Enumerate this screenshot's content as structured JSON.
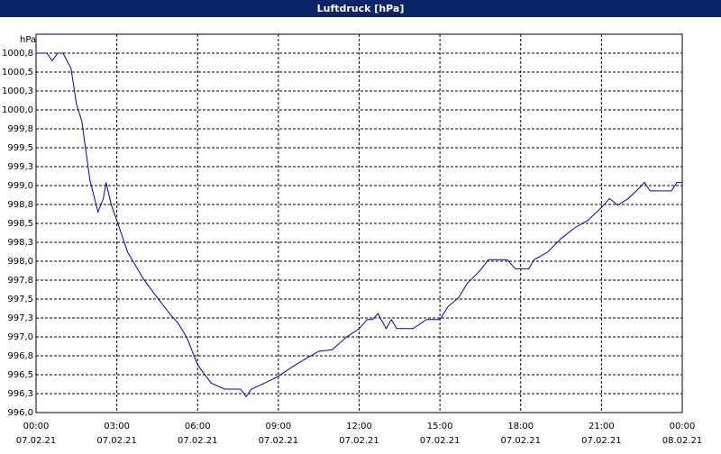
{
  "chart_data": {
    "type": "line",
    "title": "Luftdruck [hPa]",
    "y_label": "hPa",
    "xlim": [
      0,
      24
    ],
    "xticks": [
      {
        "value": 0,
        "label": "00:00"
      },
      {
        "value": 3,
        "label": "03:00"
      },
      {
        "value": 6,
        "label": "06:00"
      },
      {
        "value": 9,
        "label": "09:00"
      },
      {
        "value": 12,
        "label": "12:00"
      },
      {
        "value": 15,
        "label": "15:00"
      },
      {
        "value": 18,
        "label": "18:00"
      },
      {
        "value": 21,
        "label": "21:00"
      },
      {
        "value": 24,
        "label": "00:00"
      }
    ],
    "xtick_dates": [
      "07.02.21",
      "07.02.21",
      "07.02.21",
      "07.02.21",
      "07.02.21",
      "07.02.21",
      "07.02.21",
      "07.02.21",
      "08.02.21"
    ],
    "ylim": [
      996,
      1001
    ],
    "yticks": [
      {
        "value": 996,
        "label": "996,0"
      },
      {
        "value": 996.25,
        "label": "996,3"
      },
      {
        "value": 996.5,
        "label": "996,5"
      },
      {
        "value": 996.75,
        "label": "996,8"
      },
      {
        "value": 997,
        "label": "997,0"
      },
      {
        "value": 997.25,
        "label": "997,3"
      },
      {
        "value": 997.5,
        "label": "997,5"
      },
      {
        "value": 997.75,
        "label": "997,8"
      },
      {
        "value": 998,
        "label": "998,0"
      },
      {
        "value": 998.25,
        "label": "998,3"
      },
      {
        "value": 998.5,
        "label": "998,5"
      },
      {
        "value": 998.75,
        "label": "998,8"
      },
      {
        "value": 999,
        "label": "999,0"
      },
      {
        "value": 999.25,
        "label": "999,3"
      },
      {
        "value": 999.5,
        "label": "999,5"
      },
      {
        "value": 999.75,
        "label": "999,8"
      },
      {
        "value": 1000,
        "label": "1000,0"
      },
      {
        "value": 1000.25,
        "label": "1000,3"
      },
      {
        "value": 1000.5,
        "label": "1000,5"
      },
      {
        "value": 1000.75,
        "label": "1000,8"
      }
    ],
    "grid": true,
    "x": [
      0,
      0.4,
      0.6,
      0.8,
      1.0,
      1.3,
      1.5,
      1.7,
      2.0,
      2.3,
      2.5,
      2.6,
      2.8,
      3.0,
      3.4,
      4.0,
      4.5,
      5.0,
      5.3,
      5.6,
      6.0,
      6.5,
      7.0,
      7.6,
      7.8,
      8.0,
      8.5,
      9.0,
      9.5,
      10.0,
      10.5,
      11.0,
      11.5,
      12.0,
      12.3,
      12.5,
      12.7,
      13.0,
      13.2,
      13.4,
      14.0,
      14.5,
      15.0,
      15.3,
      15.7,
      16.0,
      16.5,
      16.8,
      17.5,
      17.8,
      18.3,
      18.5,
      19.0,
      19.5,
      20.0,
      20.5,
      21.0,
      21.3,
      21.6,
      22.0,
      22.3,
      22.6,
      22.8,
      23.6,
      23.8,
      24.0
    ],
    "series": [
      {
        "name": "Luftdruck",
        "color": "#0000c0",
        "values": [
          1000.75,
          1000.75,
          1000.65,
          1000.75,
          1000.75,
          1000.55,
          1000.08,
          999.85,
          999.07,
          998.65,
          998.83,
          999.04,
          998.74,
          998.54,
          998.12,
          997.76,
          997.52,
          997.29,
          997.17,
          996.99,
          996.63,
          996.39,
          996.31,
          996.31,
          996.21,
          996.31,
          996.39,
          996.48,
          996.6,
          996.71,
          996.81,
          996.83,
          996.99,
          997.11,
          997.23,
          997.23,
          997.31,
          997.11,
          997.23,
          997.11,
          997.11,
          997.23,
          997.23,
          997.4,
          997.52,
          997.7,
          997.88,
          998.02,
          998.02,
          997.9,
          997.9,
          998.02,
          998.12,
          998.3,
          998.44,
          998.54,
          998.71,
          998.83,
          998.74,
          998.83,
          998.93,
          999.04,
          998.93,
          998.93,
          999.04,
          999.04
        ]
      }
    ]
  }
}
